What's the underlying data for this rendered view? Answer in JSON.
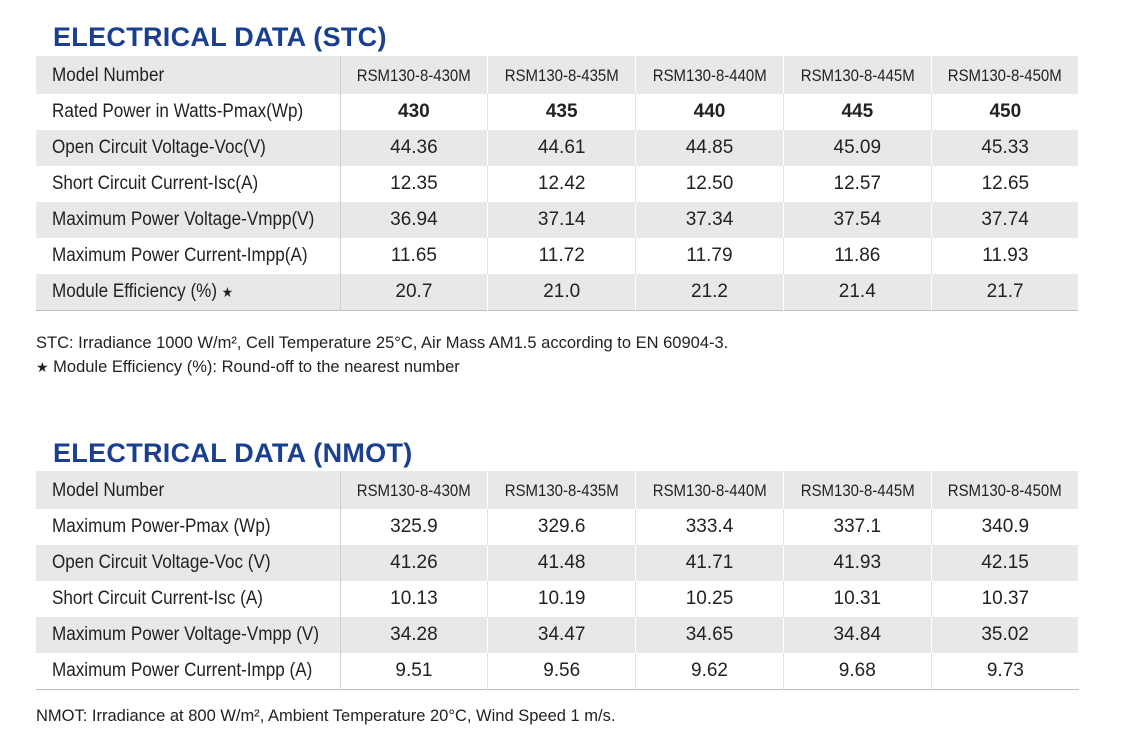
{
  "stc": {
    "title": "ELECTRICAL DATA (STC)",
    "header": {
      "label": "Model Number",
      "models": [
        "RSM130-8-430M",
        "RSM130-8-435M",
        "RSM130-8-440M",
        "RSM130-8-445M",
        "RSM130-8-450M"
      ]
    },
    "rows": [
      {
        "label": "Rated Power in Watts-Pmax(Wp)",
        "values": [
          "430",
          "435",
          "440",
          "445",
          "450"
        ]
      },
      {
        "label": "Open Circuit Voltage-Voc(V)",
        "values": [
          "44.36",
          "44.61",
          "44.85",
          "45.09",
          "45.33"
        ]
      },
      {
        "label": "Short Circuit Current-Isc(A)",
        "values": [
          "12.35",
          "12.42",
          "12.50",
          "12.57",
          "12.65"
        ]
      },
      {
        "label": "Maximum Power Voltage-Vmpp(V)",
        "values": [
          "36.94",
          "37.14",
          "37.34",
          "37.54",
          "37.74"
        ]
      },
      {
        "label": "Maximum Power Current-Impp(A)",
        "values": [
          "11.65",
          "11.72",
          "11.79",
          "11.86",
          "11.93"
        ]
      },
      {
        "label": "Module Efficiency (%)",
        "values": [
          "20.7",
          "21.0",
          "21.2",
          "21.4",
          "21.7"
        ]
      }
    ],
    "star": "★",
    "note": "STC: Irradiance 1000 W/m², Cell Temperature 25°C, Air Mass AM1.5 according to EN 60904-3.",
    "footnote": "Module Efficiency (%): Round-off to the nearest number"
  },
  "nmot": {
    "title": "ELECTRICAL DATA (NMOT)",
    "header": {
      "label": "Model Number",
      "models": [
        "RSM130-8-430M",
        "RSM130-8-435M",
        "RSM130-8-440M",
        "RSM130-8-445M",
        "RSM130-8-450M"
      ]
    },
    "rows": [
      {
        "label": "Maximum Power-Pmax (Wp)",
        "values": [
          "325.9",
          "329.6",
          "333.4",
          "337.1",
          "340.9"
        ]
      },
      {
        "label": "Open Circuit Voltage-Voc (V)",
        "values": [
          "41.26",
          "41.48",
          "41.71",
          "41.93",
          "42.15"
        ]
      },
      {
        "label": "Short Circuit Current-Isc (A)",
        "values": [
          "10.13",
          "10.19",
          "10.25",
          "10.31",
          "10.37"
        ]
      },
      {
        "label": "Maximum Power Voltage-Vmpp (V)",
        "values": [
          "34.28",
          "34.47",
          "34.65",
          "34.84",
          "35.02"
        ]
      },
      {
        "label": "Maximum Power Current-Impp (A)",
        "values": [
          "9.51",
          "9.56",
          "9.62",
          "9.68",
          "9.73"
        ]
      }
    ],
    "note": "NMOT: Irradiance at 800 W/m², Ambient Temperature 20°C, Wind Speed 1 m/s."
  },
  "colors": {
    "title": "#1a3f8f",
    "shade": "#e8e8e8"
  }
}
